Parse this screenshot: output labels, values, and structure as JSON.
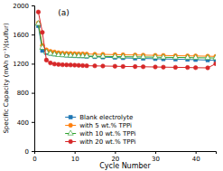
{
  "chart_data": {
    "type": "line",
    "title": "(a)",
    "x_label": "Cycle Number",
    "y_label": "Specific Capacity (mAh g⁻¹)(sulfur)",
    "x": [
      1,
      2,
      3,
      4,
      5,
      6,
      7,
      8,
      9,
      10,
      11,
      12,
      13,
      15,
      17,
      20,
      22,
      25,
      27,
      30,
      32,
      35,
      38,
      40,
      43,
      45
    ],
    "series": [
      {
        "name": "Blank electrolyte",
        "marker": "square",
        "values": [
          1720,
          1380,
          1350,
          1340,
          1330,
          1328,
          1320,
          1315,
          1310,
          1308,
          1305,
          1304,
          1300,
          1295,
          1290,
          1285,
          1280,
          1275,
          1272,
          1268,
          1265,
          1262,
          1258,
          1255,
          1250,
          1245
        ]
      },
      {
        "name": "with 5 wt.% TPPi",
        "marker": "circle",
        "values": [
          1760,
          1450,
          1390,
          1370,
          1360,
          1350,
          1345,
          1342,
          1340,
          1338,
          1336,
          1335,
          1333,
          1330,
          1328,
          1325,
          1322,
          1320,
          1318,
          1315,
          1313,
          1310,
          1308,
          1306,
          1303,
          1300
        ]
      },
      {
        "name": "with 10 wt.% TPPi",
        "marker": "triangle-open",
        "values": [
          1750,
          1420,
          1360,
          1340,
          1330,
          1320,
          1318,
          1315,
          1312,
          1310,
          1308,
          1306,
          1304,
          1302,
          1300,
          1298,
          1296,
          1294,
          1292,
          1290,
          1288,
          1286,
          1284,
          1282,
          1280,
          1278
        ]
      },
      {
        "name": "with 20 wt.% TPPi",
        "marker": "circle",
        "values": [
          1910,
          1630,
          1250,
          1210,
          1195,
          1190,
          1185,
          1184,
          1182,
          1180,
          1178,
          1175,
          1172,
          1170,
          1168,
          1165,
          1162,
          1160,
          1158,
          1155,
          1153,
          1150,
          1148,
          1145,
          1143,
          1200
        ]
      }
    ],
    "xlim": [
      0,
      45
    ],
    "ylim": [
      0,
      2000
    ],
    "xticks": [
      0,
      10,
      20,
      30,
      40
    ],
    "yticks": [
      0,
      400,
      800,
      1200,
      1600,
      2000
    ],
    "legend": "lower left",
    "grid": false
  }
}
